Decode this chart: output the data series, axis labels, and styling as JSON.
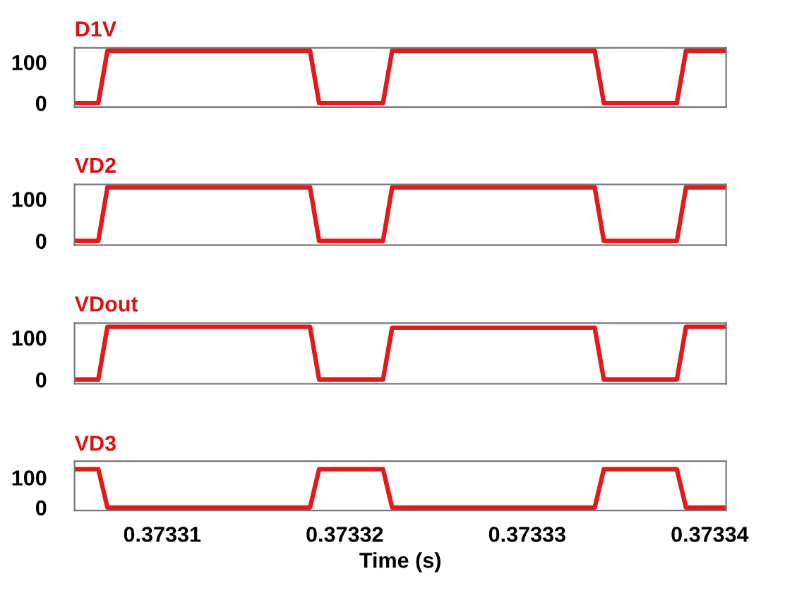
{
  "chart_data": [
    {
      "type": "line",
      "title": "D1V",
      "xlim": [
        0.3733052,
        0.3733409
      ],
      "ylim": [
        -10,
        135
      ],
      "yticks": [
        0,
        100
      ],
      "tick_labels": "y",
      "grid": false,
      "series": [
        {
          "color": "#e31a1c",
          "x": [
            0.3733052,
            0.3733065,
            0.373307,
            0.3733181,
            0.3733186,
            0.3733221,
            0.3733226,
            0.3733337,
            0.3733342,
            0.3733382,
            0.3733387,
            0.3733409
          ],
          "values": [
            0,
            0,
            128,
            128,
            0,
            0,
            128,
            128,
            0,
            0,
            128,
            128
          ]
        }
      ]
    },
    {
      "type": "line",
      "title": "VD2",
      "xlim": [
        0.3733052,
        0.3733409
      ],
      "ylim": [
        -10,
        135
      ],
      "yticks": [
        0,
        100
      ],
      "tick_labels": "y",
      "grid": false,
      "series": [
        {
          "color": "#e31a1c",
          "x": [
            0.3733052,
            0.3733065,
            0.373307,
            0.3733181,
            0.3733186,
            0.3733221,
            0.3733226,
            0.3733337,
            0.3733342,
            0.3733382,
            0.3733387,
            0.3733409
          ],
          "values": [
            0,
            0,
            128,
            128,
            0,
            0,
            128,
            128,
            0,
            0,
            128,
            128
          ]
        }
      ]
    },
    {
      "type": "line",
      "title": "VDout",
      "xlim": [
        0.3733052,
        0.3733409
      ],
      "ylim": [
        -10,
        135
      ],
      "yticks": [
        0,
        100
      ],
      "tick_labels": "y",
      "grid": false,
      "series": [
        {
          "color": "#e31a1c",
          "x": [
            0.3733052,
            0.3733065,
            0.373307,
            0.3733181,
            0.3733186,
            0.3733221,
            0.3733226,
            0.3733337,
            0.3733342,
            0.3733382,
            0.3733387,
            0.3733409
          ],
          "values": [
            0,
            0,
            126,
            126,
            0,
            0,
            124,
            124,
            0,
            0,
            126,
            126
          ]
        }
      ]
    },
    {
      "type": "line",
      "title": "VD3",
      "xlabel": "Time (s)",
      "xlim": [
        0.3733052,
        0.3733409
      ],
      "ylim": [
        -10,
        155
      ],
      "yticks": [
        0,
        100
      ],
      "xticks": [
        0.37331,
        0.37332,
        0.37333,
        0.37334
      ],
      "grid": false,
      "series": [
        {
          "color": "#e31a1c",
          "x": [
            0.3733052,
            0.3733065,
            0.373307,
            0.3733181,
            0.3733186,
            0.3733221,
            0.3733226,
            0.3733337,
            0.3733342,
            0.3733382,
            0.3733387,
            0.3733409
          ],
          "values": [
            128,
            128,
            0,
            0,
            128,
            128,
            0,
            0,
            128,
            128,
            0,
            0
          ]
        }
      ]
    }
  ]
}
